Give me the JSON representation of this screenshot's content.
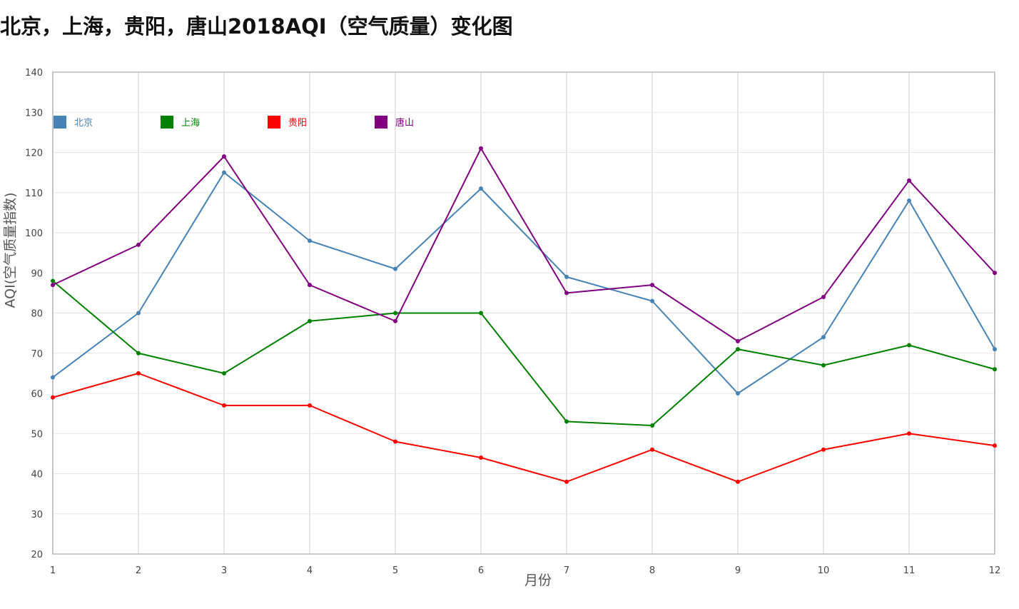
{
  "chart_data": {
    "type": "line",
    "title": "北京，上海，贵阳，唐山2018AQI（空气质量）变化图",
    "xlabel": "月份",
    "ylabel": "AQI(空气质量指数)",
    "x": [
      1,
      2,
      3,
      4,
      5,
      6,
      7,
      8,
      9,
      10,
      11,
      12
    ],
    "xlim": [
      1,
      12
    ],
    "ylim": [
      20,
      140
    ],
    "yticks": [
      20,
      30,
      40,
      50,
      60,
      70,
      80,
      90,
      100,
      110,
      120,
      130,
      140
    ],
    "grid": true,
    "legend_position": "top-left",
    "series": [
      {
        "name": "北京",
        "color": "#4682b4",
        "values": [
          64,
          80,
          115,
          98,
          91,
          111,
          89,
          83,
          60,
          74,
          108,
          71
        ]
      },
      {
        "name": "上海",
        "color": "#008000",
        "values": [
          88,
          70,
          65,
          78,
          80,
          80,
          53,
          52,
          71,
          67,
          72,
          66
        ]
      },
      {
        "name": "贵阳",
        "color": "#ff0000",
        "values": [
          59,
          65,
          57,
          57,
          48,
          44,
          38,
          46,
          38,
          46,
          50,
          47
        ]
      },
      {
        "name": "唐山",
        "color": "#800080",
        "values": [
          87,
          97,
          119,
          87,
          78,
          121,
          85,
          87,
          73,
          84,
          113,
          90
        ]
      }
    ]
  }
}
